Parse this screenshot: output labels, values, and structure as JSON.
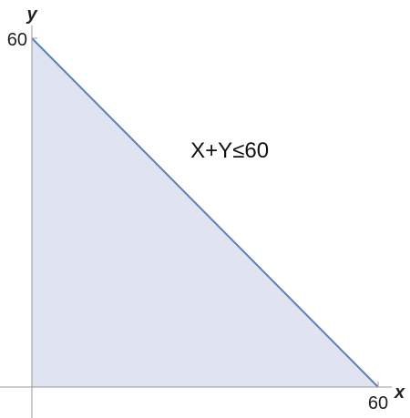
{
  "chart_data": {
    "type": "area",
    "title": "",
    "xlabel": "x",
    "ylabel": "y",
    "xlim": [
      0,
      60
    ],
    "ylim": [
      0,
      60
    ],
    "x_ticks": [
      "60"
    ],
    "y_ticks": [
      "60"
    ],
    "region": {
      "inequality": "X+Y≤60",
      "vertices": [
        [
          0,
          0
        ],
        [
          60,
          0
        ],
        [
          0,
          60
        ]
      ]
    },
    "grid": false,
    "colors": {
      "fill": "#dfe4f0",
      "boundary": "#5b7fb8",
      "axis": "#9a9a9a"
    }
  }
}
